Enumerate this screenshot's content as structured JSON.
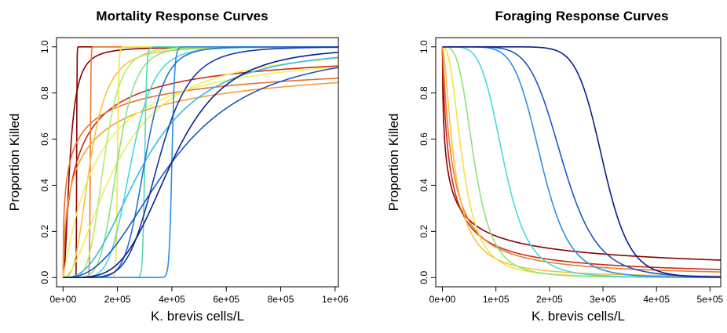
{
  "chart_data": [
    {
      "type": "line",
      "title": "Mortality Response Curves",
      "xlabel": "K. brevis cells/L",
      "ylabel": "Proportion Killed",
      "xlim": [
        0,
        1000000
      ],
      "ylim": [
        0,
        1
      ],
      "x_ticks": [
        0,
        200000,
        400000,
        600000,
        800000,
        1000000
      ],
      "x_tick_labels": [
        "0e+00",
        "2e+05",
        "4e+05",
        "6e+05",
        "8e+05",
        "1e+06"
      ],
      "y_ticks": [
        0,
        0.2,
        0.4,
        0.6,
        0.8,
        1
      ],
      "y_tick_labels": [
        "0.0",
        "0.2",
        "0.4",
        "0.6",
        "0.8",
        "1.0"
      ],
      "grid": false,
      "model": "log-logistic: y = 1/(1 + (ld50/x)^slope)",
      "series": [
        {
          "color": "#8b0000",
          "ld50": 25000,
          "slope": 2
        },
        {
          "color": "#8b0000",
          "ld50": 50000,
          "slope": 80
        },
        {
          "color": "#c62b1e",
          "ld50": 50000,
          "slope": 0.8
        },
        {
          "color": "#e8702c",
          "ld50": 25000,
          "slope": 0.5
        },
        {
          "color": "#ee7a30",
          "ld50": 100000,
          "slope": 80
        },
        {
          "color": "#f89c3a",
          "ld50": 60000,
          "slope": 0.6
        },
        {
          "color": "#f6c142",
          "ld50": 100000,
          "slope": 3
        },
        {
          "color": "#f7e044",
          "ld50": 200000,
          "slope": 80
        },
        {
          "color": "#f2f15a",
          "ld50": 120000,
          "slope": 1.1
        },
        {
          "color": "#e9ef5e",
          "ld50": 200000,
          "slope": 1.8
        },
        {
          "color": "#b6ec6a",
          "ld50": 150000,
          "slope": 5
        },
        {
          "color": "#8ae47c",
          "ld50": 200000,
          "slope": 6
        },
        {
          "color": "#54d8b4",
          "ld50": 300000,
          "slope": 80
        },
        {
          "color": "#4ad8dd",
          "ld50": 250000,
          "slope": 6
        },
        {
          "color": "#35b8ee",
          "ld50": 300000,
          "slope": 2.5
        },
        {
          "color": "#2d8fe4",
          "ld50": 400000,
          "slope": 80
        },
        {
          "color": "#2470d8",
          "ld50": 300000,
          "slope": 8
        },
        {
          "color": "#1c56c4",
          "ld50": 400000,
          "slope": 2.5
        },
        {
          "color": "#1237a8",
          "ld50": 350000,
          "slope": 6
        },
        {
          "color": "#0a1d8a",
          "ld50": 400000,
          "slope": 4
        }
      ]
    },
    {
      "type": "line",
      "title": "Foraging Response Curves",
      "xlabel": "K. brevis cells/L",
      "ylabel": "Proportion Killed",
      "xlim": [
        0,
        520000
      ],
      "ylim": [
        0,
        1
      ],
      "x_ticks": [
        0,
        100000,
        200000,
        300000,
        400000,
        500000
      ],
      "x_tick_labels": [
        "0e+00",
        "1e+05",
        "2e+05",
        "3e+05",
        "4e+05",
        "5e+05"
      ],
      "y_ticks": [
        0,
        0.2,
        0.4,
        0.6,
        0.8,
        1
      ],
      "y_tick_labels": [
        "0.0",
        "0.2",
        "0.4",
        "0.6",
        "0.8",
        "1.0"
      ],
      "grid": false,
      "model": "decreasing log-logistic: y = 1/(1 + (x/x50)^slope)",
      "series": [
        {
          "color": "#8b0000",
          "x50": 8000,
          "slope": 0.6
        },
        {
          "color": "#c62b1e",
          "x50": 13000,
          "slope": 0.9
        },
        {
          "color": "#ee7a30",
          "x50": 18000,
          "slope": 1.1
        },
        {
          "color": "#f6c142",
          "x50": 22000,
          "slope": 1.6
        },
        {
          "color": "#f7e044",
          "x50": 38000,
          "slope": 2.5
        },
        {
          "color": "#8ae47c",
          "x50": 60000,
          "slope": 3.5
        },
        {
          "color": "#4ad8dd",
          "x50": 115000,
          "slope": 5
        },
        {
          "color": "#2d8fe4",
          "x50": 185000,
          "slope": 7
        },
        {
          "color": "#1c56c4",
          "x50": 225000,
          "slope": 7
        },
        {
          "color": "#0a1d8a",
          "x50": 300000,
          "slope": 12
        }
      ]
    }
  ]
}
